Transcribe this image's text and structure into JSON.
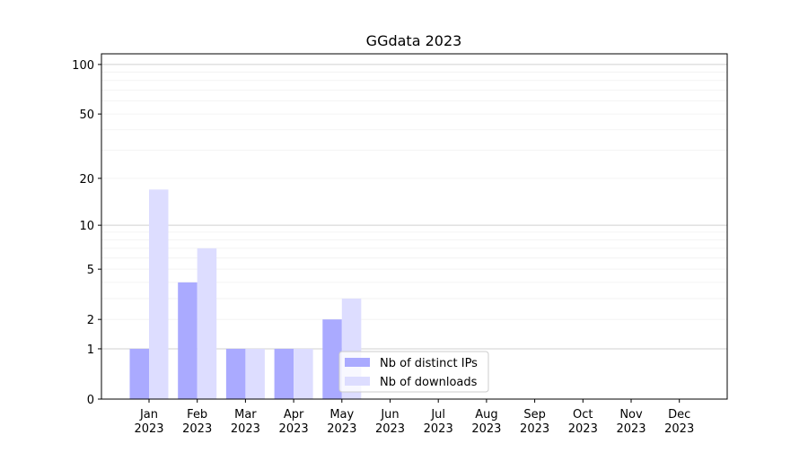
{
  "chart_data": {
    "type": "bar",
    "title": "GGdata 2023",
    "categories": [
      [
        "Jan",
        "2023"
      ],
      [
        "Feb",
        "2023"
      ],
      [
        "Mar",
        "2023"
      ],
      [
        "Apr",
        "2023"
      ],
      [
        "May",
        "2023"
      ],
      [
        "Jun",
        "2023"
      ],
      [
        "Jul",
        "2023"
      ],
      [
        "Aug",
        "2023"
      ],
      [
        "Sep",
        "2023"
      ],
      [
        "Oct",
        "2023"
      ],
      [
        "Nov",
        "2023"
      ],
      [
        "Dec",
        "2023"
      ]
    ],
    "series": [
      {
        "name": "Nb of distinct IPs",
        "color": "#aaaaff",
        "values": [
          1,
          4,
          1,
          1,
          2,
          0,
          0,
          0,
          0,
          0,
          0,
          0
        ]
      },
      {
        "name": "Nb of downloads",
        "color": "#ddddff",
        "values": [
          17,
          7,
          1,
          1,
          3,
          0,
          0,
          0,
          0,
          0,
          0,
          0
        ]
      }
    ],
    "yscale": "log1p",
    "ylim": [
      0,
      116
    ],
    "yticks": [
      0,
      1,
      2,
      5,
      10,
      20,
      50,
      100
    ],
    "grid_major": [
      1,
      10,
      100
    ],
    "grid_minor": [
      2,
      3,
      4,
      5,
      6,
      7,
      8,
      9,
      20,
      30,
      40,
      50,
      60,
      70,
      80,
      90
    ],
    "legend": "lower center"
  }
}
